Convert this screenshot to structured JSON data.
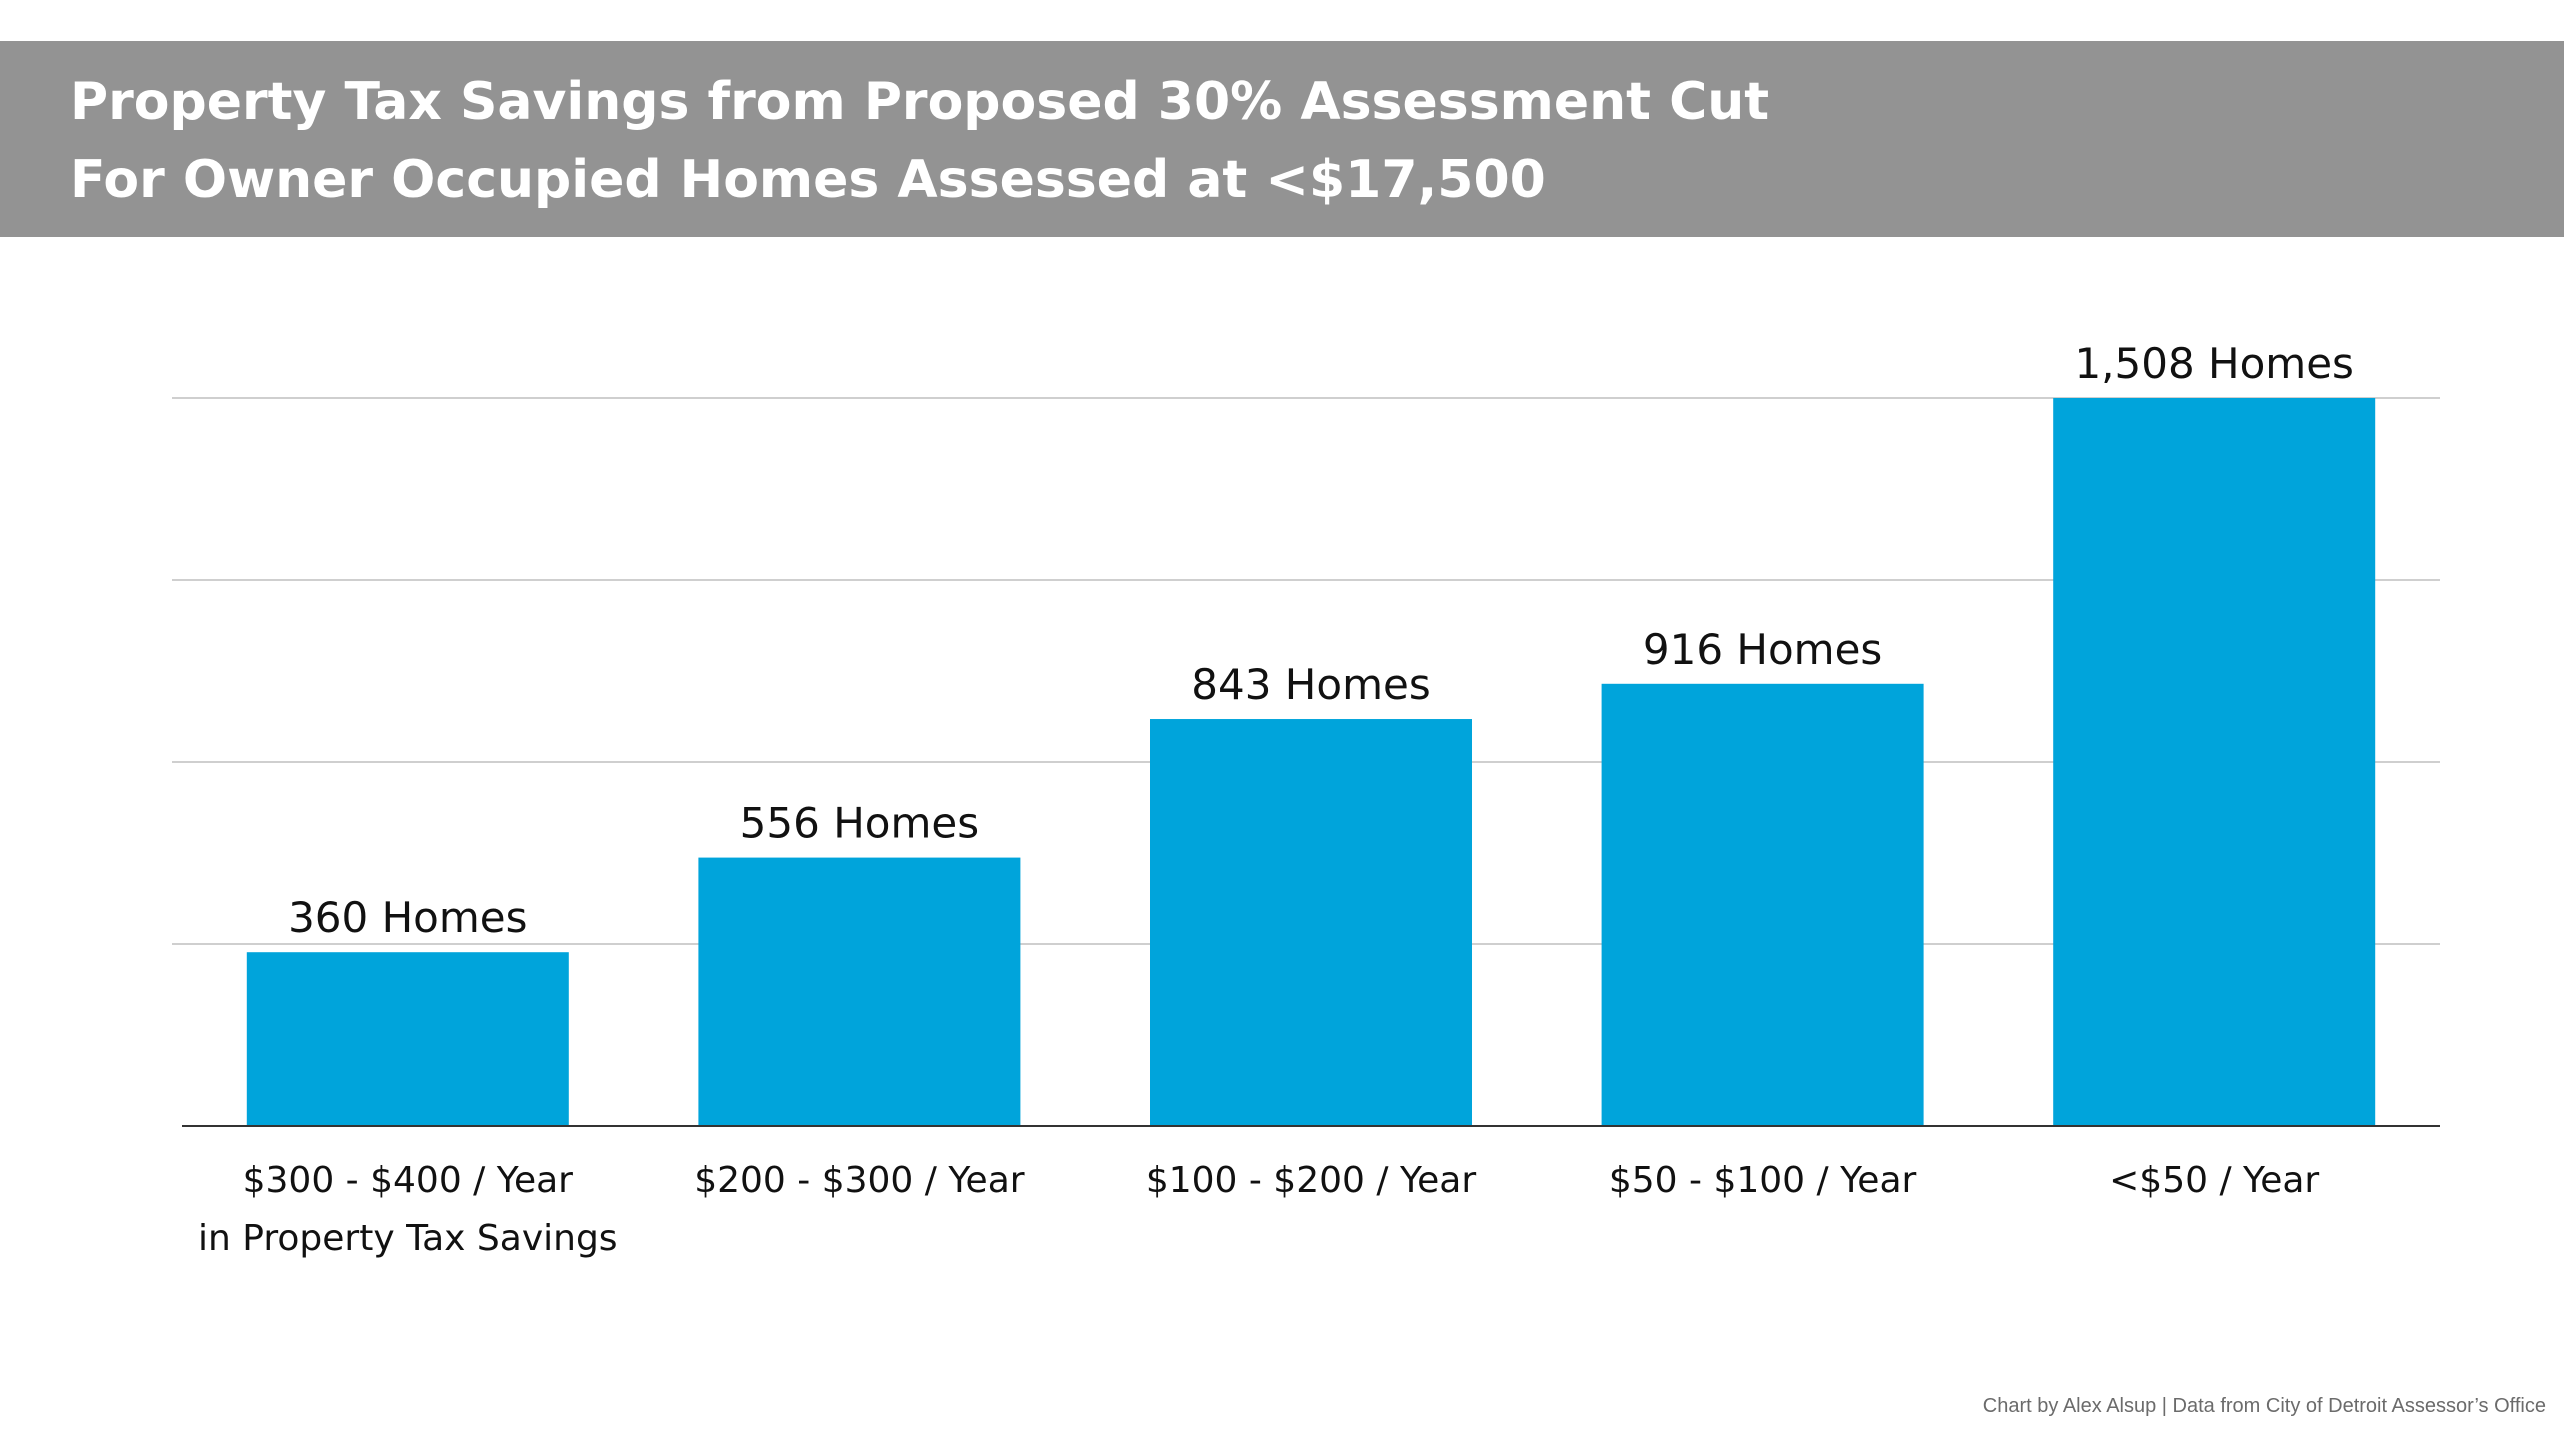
{
  "header": {
    "title_line1": "Property Tax Savings from Proposed 30% Assessment Cut",
    "title_line2": "For Owner Occupied Homes Assessed at <$17,500"
  },
  "chart_data": {
    "type": "bar",
    "categories": [
      [
        "$300 - $400 / Year",
        "in Property Tax Savings"
      ],
      [
        "$200 - $300 / Year"
      ],
      [
        "$100 - $200 / Year"
      ],
      [
        "$50 - $100 / Year"
      ],
      [
        "<$50 / Year"
      ]
    ],
    "values": [
      360,
      556,
      843,
      916,
      1508
    ],
    "data_labels": [
      "360 Homes",
      "556 Homes",
      "843 Homes",
      "916 Homes",
      "1,508 Homes"
    ],
    "ylim": [
      0,
      1508
    ],
    "grid": true,
    "gridlines": [
      377,
      754,
      1131,
      1508
    ],
    "bar_color": "#00A4DB"
  },
  "footer": {
    "credit": "Chart by Alex Alsup | Data from City of Detroit Assessor’s Office"
  }
}
